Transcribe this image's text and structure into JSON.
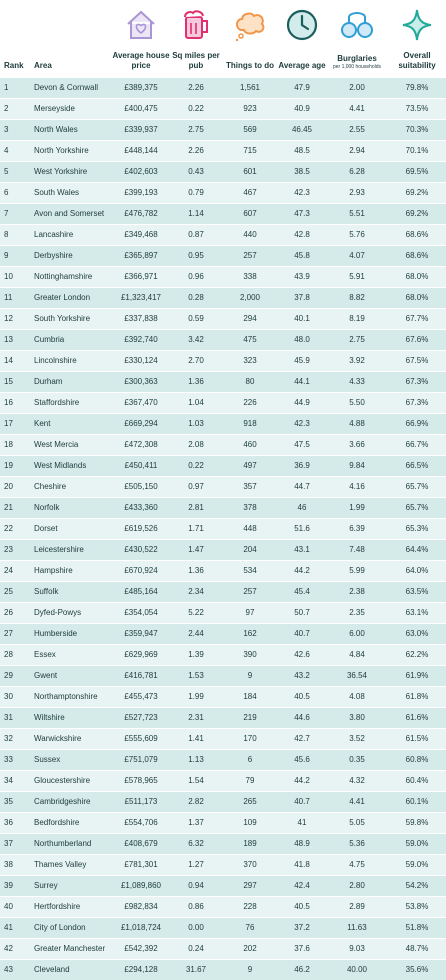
{
  "header": {
    "columns": [
      "Rank",
      "Area",
      "Average house price",
      "Sq miles per pub",
      "Things to do",
      "Average age",
      "Burglaries",
      "Overall suitability"
    ],
    "burglaries_note": "per 1,000 households"
  },
  "table": {
    "rows": [
      [
        "1",
        "Devon & Cornwall",
        "£389,375",
        "2.26",
        "1,561",
        "47.9",
        "2.00",
        "79.8%"
      ],
      [
        "2",
        "Merseyside",
        "£400,475",
        "0.22",
        "923",
        "40.9",
        "4.41",
        "73.5%"
      ],
      [
        "3",
        "North Wales",
        "£339,937",
        "2.75",
        "569",
        "46.45",
        "2.55",
        "70.3%"
      ],
      [
        "4",
        "North Yorkshire",
        "£448,144",
        "2.26",
        "715",
        "48.5",
        "2.94",
        "70.1%"
      ],
      [
        "5",
        "West Yorkshire",
        "£402,603",
        "0.43",
        "601",
        "38.5",
        "6.28",
        "69.5%"
      ],
      [
        "6",
        "South Wales",
        "£399,193",
        "0.79",
        "467",
        "42.3",
        "2.93",
        "69.2%"
      ],
      [
        "7",
        "Avon and Somerset",
        "£476,782",
        "1.14",
        "607",
        "47.3",
        "5.51",
        "69.2%"
      ],
      [
        "8",
        "Lancashire",
        "£349,468",
        "0.87",
        "440",
        "42.8",
        "5.76",
        "68.6%"
      ],
      [
        "9",
        "Derbyshire",
        "£365,897",
        "0.95",
        "257",
        "45.8",
        "4.07",
        "68.6%"
      ],
      [
        "10",
        "Nottinghamshire",
        "£366,971",
        "0.96",
        "338",
        "43.9",
        "5.91",
        "68.0%"
      ],
      [
        "11",
        "Greater London",
        "£1,323,417",
        "0.28",
        "2,000",
        "37.8",
        "8.82",
        "68.0%"
      ],
      [
        "12",
        "South Yorkshire",
        "£337,838",
        "0.59",
        "294",
        "40.1",
        "8.19",
        "67.7%"
      ],
      [
        "13",
        "Cumbria",
        "£392,740",
        "3.42",
        "475",
        "48.0",
        "2.75",
        "67.6%"
      ],
      [
        "14",
        "Lincolnshire",
        "£330,124",
        "2.70",
        "323",
        "45.9",
        "3.92",
        "67.5%"
      ],
      [
        "15",
        "Durham",
        "£300,363",
        "1.36",
        "80",
        "44.1",
        "4.33",
        "67.3%"
      ],
      [
        "16",
        "Staffordshire",
        "£367,470",
        "1.04",
        "226",
        "44.9",
        "5.50",
        "67.3%"
      ],
      [
        "17",
        "Kent",
        "£669,294",
        "1.03",
        "918",
        "42.3",
        "4.88",
        "66.9%"
      ],
      [
        "18",
        "West Mercia",
        "£472,308",
        "2.08",
        "460",
        "47.5",
        "3.66",
        "66.7%"
      ],
      [
        "19",
        "West Midlands",
        "£450,411",
        "0.22",
        "497",
        "36.9",
        "9.84",
        "66.5%"
      ],
      [
        "20",
        "Cheshire",
        "£505,150",
        "0.97",
        "357",
        "44.7",
        "4.16",
        "65.7%"
      ],
      [
        "21",
        "Norfolk",
        "£433,360",
        "2.81",
        "378",
        "46",
        "1.99",
        "65.7%"
      ],
      [
        "22",
        "Dorset",
        "£619,526",
        "1.71",
        "448",
        "51.6",
        "6.39",
        "65.3%"
      ],
      [
        "23",
        "Leicestershire",
        "£430,522",
        "1.47",
        "204",
        "43.1",
        "7.48",
        "64.4%"
      ],
      [
        "24",
        "Hampshire",
        "£670,924",
        "1.36",
        "534",
        "44.2",
        "5.99",
        "64.0%"
      ],
      [
        "25",
        "Suffolk",
        "£485,164",
        "2.34",
        "257",
        "45.4",
        "2.38",
        "63.5%"
      ],
      [
        "26",
        "Dyfed-Powys",
        "£354,054",
        "5.22",
        "97",
        "50.7",
        "2.35",
        "63.1%"
      ],
      [
        "27",
        "Humberside",
        "£359,947",
        "2.44",
        "162",
        "40.7",
        "6.00",
        "63.0%"
      ],
      [
        "28",
        "Essex",
        "£629,969",
        "1.39",
        "390",
        "42.6",
        "4.84",
        "62.2%"
      ],
      [
        "29",
        "Gwent",
        "£416,781",
        "1.53",
        "9",
        "43.2",
        "36.54",
        "61.9%"
      ],
      [
        "30",
        "Northamptonshire",
        "£455,473",
        "1.99",
        "184",
        "40.5",
        "4.08",
        "61.8%"
      ],
      [
        "31",
        "Wiltshire",
        "£527,723",
        "2.31",
        "219",
        "44.6",
        "3.80",
        "61.6%"
      ],
      [
        "32",
        "Warwickshire",
        "£555,609",
        "1.41",
        "170",
        "42.7",
        "3.52",
        "61.5%"
      ],
      [
        "33",
        "Sussex",
        "£751,079",
        "1.13",
        "6",
        "45.6",
        "0.35",
        "60.8%"
      ],
      [
        "34",
        "Gloucestershire",
        "£578,965",
        "1.54",
        "79",
        "44.2",
        "4.32",
        "60.4%"
      ],
      [
        "35",
        "Cambridgeshire",
        "£511,173",
        "2.82",
        "265",
        "40.7",
        "4.41",
        "60.1%"
      ],
      [
        "36",
        "Bedfordshire",
        "£554,706",
        "1.37",
        "109",
        "41",
        "5.05",
        "59.8%"
      ],
      [
        "37",
        "Northumberland",
        "£408,679",
        "6.32",
        "189",
        "48.9",
        "5.36",
        "59.0%"
      ],
      [
        "38",
        "Thames Valley",
        "£781,301",
        "1.27",
        "370",
        "41.8",
        "4.75",
        "59.0%"
      ],
      [
        "39",
        "Surrey",
        "£1,089,860",
        "0.94",
        "297",
        "42.4",
        "2.80",
        "54.2%"
      ],
      [
        "40",
        "Hertfordshire",
        "£982,834",
        "0.86",
        "228",
        "40.5",
        "2.89",
        "53.8%"
      ],
      [
        "41",
        "City of London",
        "£1,018,724",
        "0.00",
        "76",
        "37.2",
        "11.63",
        "51.8%"
      ],
      [
        "42",
        "Greater Manchester",
        "£542,392",
        "0.24",
        "202",
        "37.6",
        "9.03",
        "48.7%"
      ],
      [
        "43",
        "Cleveland",
        "£294,128",
        "31.67",
        "9",
        "46.2",
        "40.00",
        "35.6%"
      ]
    ]
  }
}
